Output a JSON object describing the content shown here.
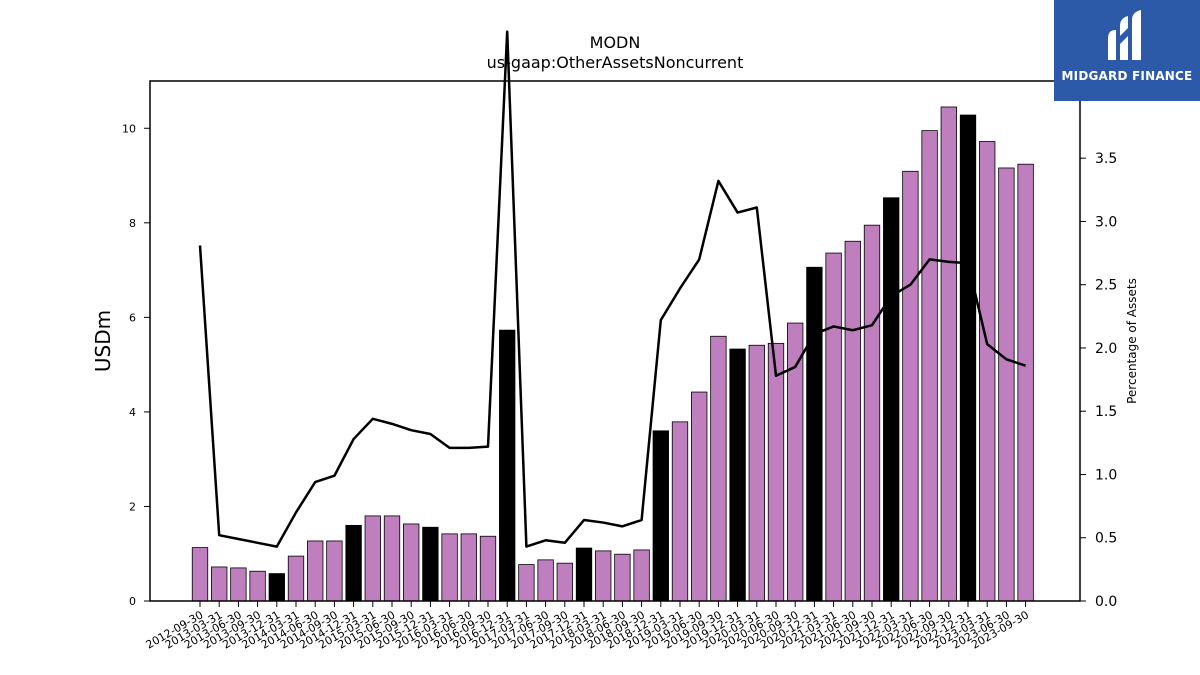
{
  "chart_data": {
    "type": "bar",
    "title": "MODN",
    "subtitle": "us-gaap:OtherAssetsNoncurrent",
    "ylabel": "USDm",
    "y2label": "Percentage of Assets",
    "ylim": [
      0,
      11
    ],
    "y2lim": [
      0,
      4.11
    ],
    "yticks": [
      "0",
      "2",
      "4",
      "6",
      "8",
      "10"
    ],
    "y2ticks": [
      "0.0",
      "0.5",
      "1.0",
      "1.5",
      "2.0",
      "2.5",
      "3.0",
      "3.5"
    ],
    "categories": [
      "2012-09-30",
      "2013-03-31",
      "2013-06-30",
      "2013-09-30",
      "2013-12-31",
      "2014-03-31",
      "2014-06-30",
      "2014-09-30",
      "2014-12-31",
      "2015-03-31",
      "2015-06-30",
      "2015-09-30",
      "2015-12-31",
      "2016-03-31",
      "2016-06-30",
      "2016-09-30",
      "2016-12-31",
      "2017-03-31",
      "2017-06-30",
      "2017-09-30",
      "2017-12-31",
      "2018-03-31",
      "2018-06-30",
      "2018-09-30",
      "2018-12-31",
      "2019-03-31",
      "2019-06-30",
      "2019-09-30",
      "2019-12-31",
      "2020-03-31",
      "2020-06-30",
      "2020-09-30",
      "2020-12-31",
      "2021-03-31",
      "2021-06-30",
      "2021-09-30",
      "2021-12-31",
      "2022-03-31",
      "2022-06-30",
      "2022-09-30",
      "2022-12-31",
      "2023-03-31",
      "2023-06-30",
      "2023-09-30"
    ],
    "series": [
      {
        "kind": "bar",
        "values": [
          1.13,
          0.72,
          0.7,
          0.63,
          0.58,
          0.95,
          1.27,
          1.27,
          1.6,
          1.8,
          1.8,
          1.63,
          1.56,
          1.42,
          1.42,
          1.37,
          5.73,
          0.77,
          0.87,
          0.8,
          1.12,
          1.06,
          0.99,
          1.08,
          3.6,
          3.79,
          4.42,
          5.6,
          5.33,
          5.41,
          5.45,
          5.88,
          7.06,
          7.36,
          7.61,
          7.95,
          8.53,
          9.09,
          9.95,
          10.45,
          10.28,
          9.72,
          9.16,
          9.24
        ],
        "highlight": [
          false,
          false,
          false,
          false,
          true,
          false,
          false,
          false,
          true,
          false,
          false,
          false,
          true,
          false,
          false,
          false,
          true,
          false,
          false,
          false,
          true,
          false,
          false,
          false,
          true,
          false,
          false,
          false,
          true,
          false,
          false,
          false,
          true,
          false,
          false,
          false,
          true,
          false,
          false,
          false,
          true,
          false,
          false,
          false
        ]
      },
      {
        "kind": "line",
        "axis": "right",
        "values": [
          2.81,
          0.52,
          0.49,
          0.46,
          0.43,
          0.7,
          0.94,
          0.99,
          1.28,
          1.44,
          1.4,
          1.35,
          1.32,
          1.21,
          1.21,
          1.22,
          4.5,
          0.43,
          0.48,
          0.46,
          0.64,
          0.62,
          0.59,
          0.64,
          2.22,
          2.47,
          2.7,
          3.32,
          3.07,
          3.11,
          1.78,
          1.85,
          2.11,
          2.17,
          2.14,
          2.18,
          2.41,
          2.5,
          2.7,
          2.68,
          2.67,
          2.03,
          1.91,
          1.86
        ]
      }
    ],
    "colors": {
      "bar": "#bf7fbf",
      "bar_highlight": "#000000",
      "line": "#000000"
    },
    "grid": false,
    "legend": "none"
  },
  "logo": {
    "text": "MIDGARD FINANCE",
    "icon": "midgard-logo-icon"
  }
}
